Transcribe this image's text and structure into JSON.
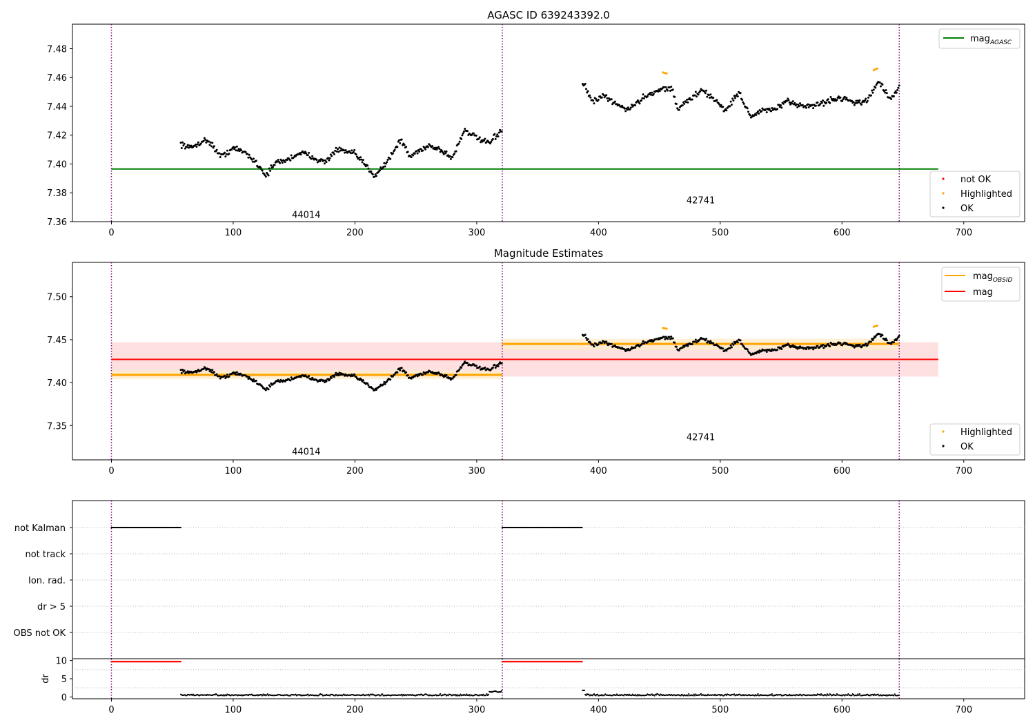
{
  "figure": {
    "background": "#ffffff"
  },
  "colors": {
    "ok": "#000000",
    "not_ok": "#ff0000",
    "highlighted": "#ffa500",
    "agasc_line": "#008000",
    "mag_line": "#ff0000",
    "mag_band": "#ffe0e0",
    "obsid_line": "#ffa500",
    "obsid_band": "#ffedcc",
    "obs_boundary": "#800080",
    "grid": "#b0b0b0"
  },
  "chart_data": [
    {
      "id": "top",
      "type": "scatter",
      "title": "AGASC ID 639243392.0",
      "xlim": [
        -32,
        750
      ],
      "ylim": [
        7.36,
        7.497
      ],
      "xticks": [
        0,
        100,
        200,
        300,
        400,
        500,
        600,
        700
      ],
      "yticks": [
        7.36,
        7.38,
        7.4,
        7.42,
        7.44,
        7.46,
        7.48
      ],
      "obs_boundaries": [
        0,
        321,
        647
      ],
      "obs_labels": [
        {
          "text": "44014",
          "x": 160,
          "y": 7.365
        },
        {
          "text": "42741",
          "x": 484,
          "y": 7.375
        }
      ],
      "agasc_mag": {
        "value": 7.3965,
        "x": [
          0,
          679
        ]
      },
      "legend_lines": [
        {
          "label": "mag",
          "subscript": "AGASC",
          "color": "#008000"
        }
      ],
      "legend_markers": [
        {
          "label": "not OK",
          "color": "#ff0000"
        },
        {
          "label": "Highlighted",
          "color": "#ffa500"
        },
        {
          "label": "OK",
          "color": "#000000"
        }
      ],
      "segments": [
        {
          "x": [
            57,
            321
          ],
          "anchors": [
            [
              57,
              7.414
            ],
            [
              65,
              7.411
            ],
            [
              75,
              7.416
            ],
            [
              80,
              7.416
            ],
            [
              90,
              7.405
            ],
            [
              100,
              7.411
            ],
            [
              110,
              7.408
            ],
            [
              120,
              7.4
            ],
            [
              127,
              7.392
            ],
            [
              135,
              7.401
            ],
            [
              145,
              7.403
            ],
            [
              155,
              7.408
            ],
            [
              165,
              7.405
            ],
            [
              175,
              7.401
            ],
            [
              185,
              7.41
            ],
            [
              200,
              7.407
            ],
            [
              210,
              7.398
            ],
            [
              216,
              7.392
            ],
            [
              225,
              7.4
            ],
            [
              238,
              7.417
            ],
            [
              245,
              7.405
            ],
            [
              260,
              7.413
            ],
            [
              270,
              7.41
            ],
            [
              280,
              7.404
            ],
            [
              290,
              7.424
            ],
            [
              300,
              7.418
            ],
            [
              310,
              7.414
            ],
            [
              321,
              7.424
            ]
          ]
        },
        {
          "x": [
            387,
            647
          ],
          "anchors": [
            [
              387,
              7.457
            ],
            [
              395,
              7.443
            ],
            [
              405,
              7.447
            ],
            [
              415,
              7.441
            ],
            [
              425,
              7.438
            ],
            [
              440,
              7.448
            ],
            [
              452,
              7.452
            ],
            [
              460,
              7.453
            ],
            [
              465,
              7.438
            ],
            [
              475,
              7.445
            ],
            [
              485,
              7.451
            ],
            [
              495,
              7.445
            ],
            [
              505,
              7.437
            ],
            [
              515,
              7.45
            ],
            [
              525,
              7.433
            ],
            [
              535,
              7.437
            ],
            [
              545,
              7.438
            ],
            [
              555,
              7.443
            ],
            [
              565,
              7.441
            ],
            [
              575,
              7.44
            ],
            [
              590,
              7.444
            ],
            [
              600,
              7.446
            ],
            [
              610,
              7.443
            ],
            [
              620,
              7.443
            ],
            [
              630,
              7.458
            ],
            [
              640,
              7.444
            ],
            [
              647,
              7.453
            ]
          ]
        }
      ],
      "highlighted": [
        [
          453,
          7.4635
        ],
        [
          454,
          7.4632
        ],
        [
          455,
          7.463
        ],
        [
          456,
          7.4628
        ],
        [
          626,
          7.465
        ],
        [
          627,
          7.4655
        ],
        [
          628,
          7.466
        ],
        [
          629,
          7.4662
        ]
      ]
    },
    {
      "id": "middle",
      "type": "scatter",
      "title": "Magnitude Estimates",
      "xlim": [
        -32,
        750
      ],
      "ylim": [
        7.31,
        7.54
      ],
      "xticks": [
        0,
        100,
        200,
        300,
        400,
        500,
        600,
        700
      ],
      "yticks": [
        7.35,
        7.4,
        7.45,
        7.5
      ],
      "obs_boundaries": [
        0,
        321,
        647
      ],
      "obs_labels": [
        {
          "text": "44014",
          "x": 160,
          "y": 7.32
        },
        {
          "text": "42741",
          "x": 484,
          "y": 7.337
        }
      ],
      "mag": {
        "value": 7.427,
        "band": [
          7.407,
          7.447
        ],
        "x": [
          0,
          679
        ]
      },
      "obsid_mags": [
        {
          "value": 7.409,
          "band": [
            7.404,
            7.414
          ],
          "x": [
            0,
            321
          ]
        },
        {
          "value": 7.445,
          "band": [
            7.438,
            7.451
          ],
          "x": [
            321,
            647
          ]
        }
      ],
      "legend_lines": [
        {
          "label": "mag",
          "subscript": "OBSID",
          "color": "#ffa500"
        },
        {
          "label": "mag",
          "subscript": "",
          "color": "#ff0000"
        }
      ],
      "legend_markers": [
        {
          "label": "Highlighted",
          "color": "#ffa500"
        },
        {
          "label": "OK",
          "color": "#000000"
        }
      ]
    },
    {
      "id": "flags",
      "type": "scatter",
      "xlim": [
        -32,
        750
      ],
      "categories": [
        "not Kalman",
        "not track",
        "Ion. rad.",
        "dr > 5",
        "OBS not OK"
      ],
      "not_kalman_ranges": [
        [
          0,
          57
        ],
        [
          321,
          387
        ]
      ],
      "obs_boundaries": [
        0,
        321,
        647
      ]
    },
    {
      "id": "dr",
      "type": "scatter",
      "ylabel": "dr",
      "xlim": [
        -32,
        750
      ],
      "ylim": [
        -0.5,
        10.5
      ],
      "xticks": [
        0,
        100,
        200,
        300,
        400,
        500,
        600,
        700
      ],
      "yticks": [
        0,
        5,
        10
      ],
      "high_dr_ranges": [
        [
          0,
          57
        ],
        [
          321,
          387
        ]
      ],
      "high_dr_value": 9.7,
      "obs_boundaries": [
        0,
        321,
        647
      ]
    }
  ]
}
